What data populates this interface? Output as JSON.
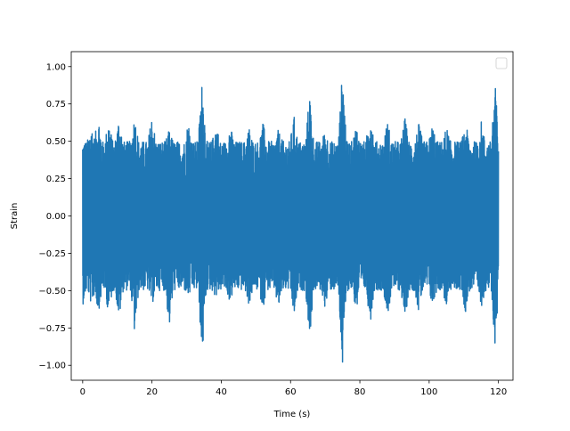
{
  "chart_data": {
    "type": "line",
    "title": "",
    "xlabel": "Time (s)",
    "ylabel": "Strain",
    "xlim": [
      -3.3,
      124.2
    ],
    "ylim": [
      -1.1,
      1.1
    ],
    "x_ticks": [
      0,
      20,
      40,
      60,
      80,
      100,
      120
    ],
    "y_ticks": [
      -1.0,
      -0.75,
      -0.5,
      -0.25,
      0.0,
      0.25,
      0.5,
      0.75,
      1.0
    ],
    "x_tick_labels": [
      "0",
      "20",
      "40",
      "60",
      "80",
      "100",
      "120"
    ],
    "y_tick_labels": [
      "−1.00",
      "−0.75",
      "−0.50",
      "−0.25",
      "0.00",
      "0.25",
      "0.50",
      "0.75",
      "1.00"
    ],
    "grid": false,
    "legend": {
      "placement": "top-right",
      "entries": []
    },
    "series": [
      {
        "color": "#1f77b4",
        "x_range": [
          0,
          120
        ],
        "samples": 3000,
        "envelope": {
          "typical_max": 0.5,
          "typical_min": -0.5,
          "peaks": [
            {
              "x": 0.0,
              "max": 0.52,
              "min": -0.6
            },
            {
              "x": 2.5,
              "max": 0.62,
              "min": -0.6
            },
            {
              "x": 4.5,
              "max": 0.68,
              "min": -0.65
            },
            {
              "x": 7.5,
              "max": 0.65,
              "min": -0.66
            },
            {
              "x": 10.5,
              "max": 0.67,
              "min": -0.7
            },
            {
              "x": 15.0,
              "max": 0.68,
              "min": -0.8
            },
            {
              "x": 20.0,
              "max": 0.68,
              "min": -0.6
            },
            {
              "x": 25.0,
              "max": 0.58,
              "min": -0.75
            },
            {
              "x": 30.5,
              "max": 0.64,
              "min": -0.55
            },
            {
              "x": 34.5,
              "max": 0.92,
              "min": -0.96
            },
            {
              "x": 38.5,
              "max": 0.63,
              "min": -0.55
            },
            {
              "x": 42.5,
              "max": 0.62,
              "min": -0.58
            },
            {
              "x": 48.0,
              "max": 0.6,
              "min": -0.6
            },
            {
              "x": 52.0,
              "max": 0.63,
              "min": -0.62
            },
            {
              "x": 56.5,
              "max": 0.58,
              "min": -0.63
            },
            {
              "x": 61.0,
              "max": 0.67,
              "min": -0.68
            },
            {
              "x": 65.5,
              "max": 0.83,
              "min": -0.83
            },
            {
              "x": 70.0,
              "max": 0.58,
              "min": -0.62
            },
            {
              "x": 75.0,
              "max": 1.0,
              "min": -1.03
            },
            {
              "x": 79.0,
              "max": 0.62,
              "min": -0.65
            },
            {
              "x": 83.0,
              "max": 0.75,
              "min": -0.72
            },
            {
              "x": 88.0,
              "max": 0.64,
              "min": -0.68
            },
            {
              "x": 93.0,
              "max": 0.66,
              "min": -0.7
            },
            {
              "x": 97.0,
              "max": 0.62,
              "min": -0.65
            },
            {
              "x": 101.0,
              "max": 0.62,
              "min": -0.62
            },
            {
              "x": 105.0,
              "max": 0.6,
              "min": -0.62
            },
            {
              "x": 110.5,
              "max": 0.62,
              "min": -0.65
            },
            {
              "x": 115.0,
              "max": 0.64,
              "min": -0.62
            },
            {
              "x": 119.0,
              "max": 0.9,
              "min": -0.86
            },
            {
              "x": 120.0,
              "max": 0.5,
              "min": -0.55
            }
          ]
        }
      }
    ]
  }
}
